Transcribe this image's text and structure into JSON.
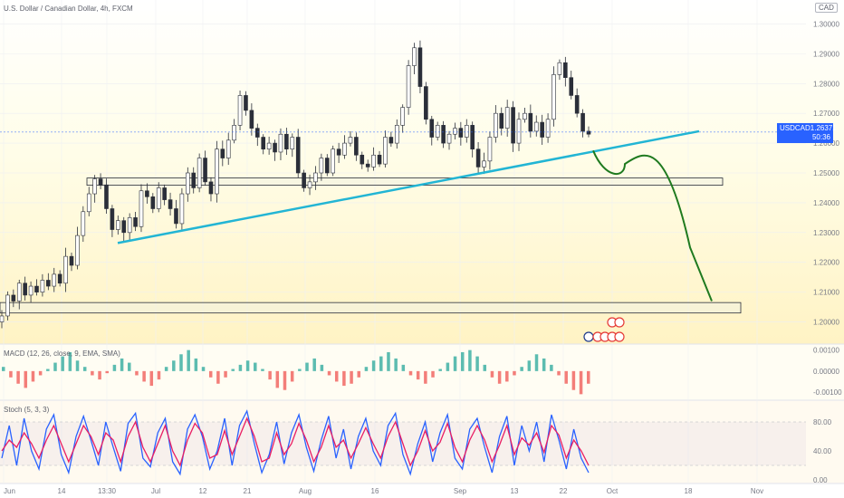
{
  "header": {
    "title": "U.S. Dollar / Canadian Dollar, 4h, FXCM"
  },
  "currency_badge": "CAD",
  "price_badge": {
    "symbol": "USDCAD",
    "price": "1.26371",
    "countdown": "50:36"
  },
  "colors": {
    "candle": "#2a2e39",
    "trendline": "#22b5d4",
    "projection": "#1f7a1f",
    "zone_fill": "rgba(240,240,225,0.55)",
    "macd_up": "#26a69a",
    "macd_down": "#ef5350",
    "stoch_k": "#2962ff",
    "stoch_d": "#e91e63",
    "accent": "#2962ff"
  },
  "chart_data": [
    {
      "type": "candlestick",
      "title": "U.S. Dollar / Canadian Dollar, 4h, FXCM",
      "ylim": [
        1.195,
        1.305
      ],
      "y_ticks": [
        "1.30000",
        "1.29000",
        "1.28000",
        "1.27000",
        "1.26000",
        "1.25000",
        "1.24000",
        "1.23000",
        "1.22000",
        "1.21000",
        "1.20000"
      ],
      "y_tick_values": [
        1.3,
        1.29,
        1.28,
        1.27,
        1.26,
        1.25,
        1.24,
        1.23,
        1.22,
        1.21,
        1.2
      ],
      "x_ticks": [
        "Jun",
        "14",
        "13:30",
        "Jul",
        "12",
        "21",
        "Aug",
        "16",
        "Sep",
        "13",
        "22",
        "Oct",
        "18",
        "Nov"
      ],
      "close_path": [
        1.202,
        1.209,
        1.207,
        1.213,
        1.209,
        1.212,
        1.21,
        1.214,
        1.212,
        1.216,
        1.213,
        1.222,
        1.219,
        1.229,
        1.237,
        1.243,
        1.248,
        1.246,
        1.238,
        1.231,
        1.234,
        1.23,
        1.235,
        1.232,
        1.244,
        1.242,
        1.238,
        1.245,
        1.241,
        1.238,
        1.233,
        1.243,
        1.25,
        1.245,
        1.255,
        1.247,
        1.243,
        1.258,
        1.255,
        1.261,
        1.266,
        1.276,
        1.271,
        1.265,
        1.262,
        1.258,
        1.26,
        1.257,
        1.263,
        1.258,
        1.262,
        1.25,
        1.245,
        1.247,
        1.25,
        1.255,
        1.25,
        1.258,
        1.256,
        1.26,
        1.262,
        1.256,
        1.253,
        1.252,
        1.256,
        1.253,
        1.262,
        1.26,
        1.266,
        1.272,
        1.286,
        1.292,
        1.279,
        1.268,
        1.262,
        1.266,
        1.26,
        1.263,
        1.265,
        1.262,
        1.266,
        1.258,
        1.252,
        1.254,
        1.262,
        1.27,
        1.265,
        1.272,
        1.26,
        1.268,
        1.27,
        1.264,
        1.267,
        1.262,
        1.268,
        1.283,
        1.287,
        1.282,
        1.276,
        1.27,
        1.264,
        1.263
      ],
      "trendline": {
        "from": [
          "13:30",
          1.2265
        ],
        "to": [
          "Oct",
          1.264
        ]
      },
      "support_zones": [
        {
          "from": "14",
          "to": "Oct",
          "low": 1.2465,
          "high": 1.2483
        },
        {
          "from": "Jun",
          "to": "Oct",
          "low": 1.203,
          "high": 1.2065
        }
      ],
      "projection_path": [
        1.2575,
        1.248,
        1.253,
        1.2575,
        1.248,
        1.225,
        1.207
      ],
      "last_price": 1.26371
    },
    {
      "type": "bar",
      "title": "MACD (12, 26, close, 9, EMA, SMA)",
      "ylim": [
        -0.0013,
        0.0012
      ],
      "y_ticks": [
        "0.00100",
        "0.00000",
        "-0.00100"
      ],
      "y_tick_values": [
        0.001,
        0.0,
        -0.001
      ],
      "values": [
        0.0002,
        -0.0003,
        -0.0006,
        -0.0008,
        -0.0005,
        -0.0002,
        0.0001,
        0.0004,
        0.0007,
        0.0009,
        0.0005,
        0.0002,
        -0.0002,
        -0.0004,
        -0.0001,
        0.0003,
        0.0006,
        0.0004,
        -0.0002,
        -0.0005,
        -0.0007,
        -0.0004,
        0.0002,
        0.0005,
        0.0008,
        0.001,
        0.0006,
        0.0002,
        -0.0003,
        -0.0006,
        -0.0003,
        0.0001,
        0.0003,
        0.0005,
        0.0004,
        0.0001,
        -0.0004,
        -0.0008,
        -0.0009,
        -0.0005,
        0.0001,
        0.0004,
        0.0006,
        0.0003,
        -0.0002,
        -0.0005,
        -0.0007,
        -0.0006,
        -0.0003,
        0.0002,
        0.0005,
        0.0007,
        0.0009,
        0.0006,
        0.0003,
        -0.0002,
        -0.0004,
        -0.0006,
        -0.0003,
        0.0001,
        0.0004,
        0.0007,
        0.0009,
        0.001,
        0.0007,
        0.0003,
        -0.0003,
        -0.0006,
        -0.0005,
        -0.0002,
        0.0002,
        0.0005,
        0.0008,
        0.0006,
        0.0003,
        -0.0002,
        -0.0006,
        -0.0009,
        -0.0011,
        -0.0006
      ]
    },
    {
      "type": "line",
      "title": "Stoch (5, 3, 3)",
      "ylim": [
        0,
        100
      ],
      "y_ticks": [
        "80.00",
        "40.00",
        "0.00"
      ],
      "y_tick_values": [
        80,
        40,
        0
      ],
      "series": [
        {
          "name": "%K",
          "values": [
            30,
            75,
            20,
            85,
            40,
            15,
            70,
            90,
            35,
            10,
            60,
            88,
            55,
            20,
            80,
            45,
            12,
            78,
            92,
            30,
            18,
            65,
            85,
            25,
            8,
            70,
            90,
            60,
            15,
            40,
            85,
            20,
            75,
            95,
            50,
            10,
            35,
            80,
            22,
            65,
            90,
            45,
            12,
            55,
            88,
            30,
            70,
            15,
            60,
            85,
            40,
            20,
            75,
            92,
            35,
            8,
            50,
            80,
            25,
            65,
            90,
            30,
            15,
            70,
            85,
            45,
            10,
            60,
            88,
            20,
            75,
            40,
            80,
            25,
            90,
            55,
            15,
            70,
            30,
            10
          ]
        },
        {
          "name": "%D",
          "values": [
            40,
            55,
            45,
            65,
            50,
            30,
            55,
            75,
            50,
            25,
            50,
            75,
            60,
            35,
            65,
            55,
            25,
            60,
            80,
            45,
            25,
            50,
            75,
            40,
            20,
            55,
            78,
            65,
            30,
            35,
            68,
            35,
            60,
            85,
            60,
            25,
            30,
            65,
            35,
            50,
            78,
            55,
            25,
            45,
            75,
            45,
            55,
            30,
            50,
            72,
            50,
            30,
            60,
            80,
            50,
            20,
            40,
            68,
            40,
            52,
            78,
            45,
            25,
            55,
            75,
            55,
            25,
            48,
            75,
            35,
            58,
            48,
            65,
            38,
            75,
            62,
            30,
            55,
            40,
            20
          ]
        }
      ]
    }
  ]
}
